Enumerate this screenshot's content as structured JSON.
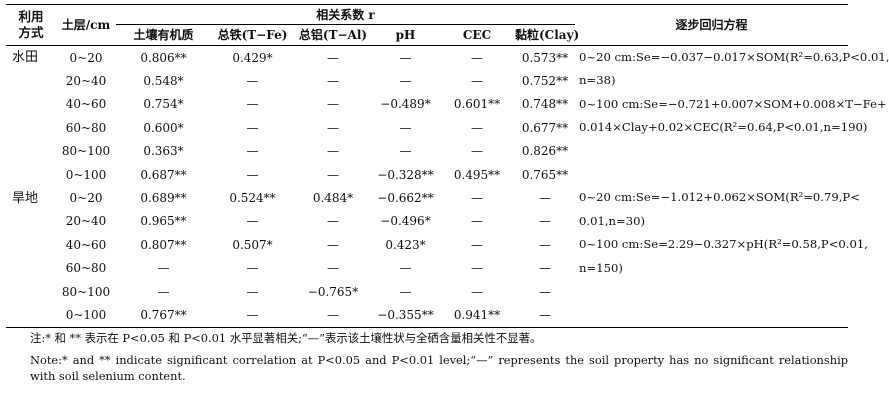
{
  "header": {
    "use": "利用方式",
    "layer": "土层/cm",
    "corr_group": "相关系数 r",
    "regression": "逐步回归方程",
    "columns": [
      "土壤有机质",
      "总铁(T−Fe)",
      "总铝(T−Al)",
      "pH",
      "CEC",
      "黏粒(Clay)"
    ]
  },
  "groups": [
    {
      "use": "水田",
      "rows": [
        {
          "layer": "0~20",
          "values": [
            "0.806**",
            "0.429*",
            "—",
            "—",
            "—",
            "0.573**"
          ]
        },
        {
          "layer": "20~40",
          "values": [
            "0.548*",
            "—",
            "—",
            "—",
            "—",
            "0.752**"
          ]
        },
        {
          "layer": "40~60",
          "values": [
            "0.754*",
            "—",
            "—",
            "−0.489*",
            "0.601**",
            "0.748**"
          ]
        },
        {
          "layer": "60~80",
          "values": [
            "0.600*",
            "—",
            "—",
            "—",
            "—",
            "0.677**"
          ]
        },
        {
          "layer": "80~100",
          "values": [
            "0.363*",
            "—",
            "—",
            "—",
            "—",
            "0.826**"
          ]
        },
        {
          "layer": "0~100",
          "values": [
            "0.687**",
            "—",
            "—",
            "−0.328**",
            "0.495**",
            "0.765**"
          ]
        }
      ],
      "equations": [
        "0~20 cm:Se=−0.037−0.017×SOM(R²=0.63,P<0.01,",
        "n=38)",
        "0~100 cm:Se=−0.721+0.007×SOM+0.008×T−Fe+",
        "0.014×Clay+0.02×CEC(R²=0.64,P<0.01,n=190)"
      ]
    },
    {
      "use": "旱地",
      "rows": [
        {
          "layer": "0~20",
          "values": [
            "0.689**",
            "0.524**",
            "0.484*",
            "−0.662**",
            "—",
            "—"
          ]
        },
        {
          "layer": "20~40",
          "values": [
            "0.965**",
            "—",
            "—",
            "−0.496*",
            "—",
            "—"
          ]
        },
        {
          "layer": "40~60",
          "values": [
            "0.807**",
            "0.507*",
            "—",
            "0.423*",
            "—",
            "—"
          ]
        },
        {
          "layer": "60~80",
          "values": [
            "—",
            "—",
            "—",
            "—",
            "—",
            "—"
          ]
        },
        {
          "layer": "80~100",
          "values": [
            "—",
            "—",
            "−0.765*",
            "—",
            "—",
            "—"
          ]
        },
        {
          "layer": "0~100",
          "values": [
            "0.767**",
            "—",
            "—",
            "−0.355**",
            "0.941**",
            "—"
          ]
        }
      ],
      "equations": [
        "0~20 cm:Se=−1.012+0.062×SOM(R²=0.79,P<",
        "0.01,n=30)",
        "0~100 cm:Se=2.29−0.327×pH(R²=0.58,P<0.01,",
        "n=150)"
      ]
    }
  ],
  "notes": {
    "cn": "注:* 和 ** 表示在 P<0.05 和 P<0.01 水平显著相关;“—”表示该土壤性状与全硒含量相关性不显著。",
    "en": "Note:* and ** indicate significant correlation at P<0.05 and P<0.01 level;“—” represents the soil property has no significant relationship with soil selenium content."
  }
}
